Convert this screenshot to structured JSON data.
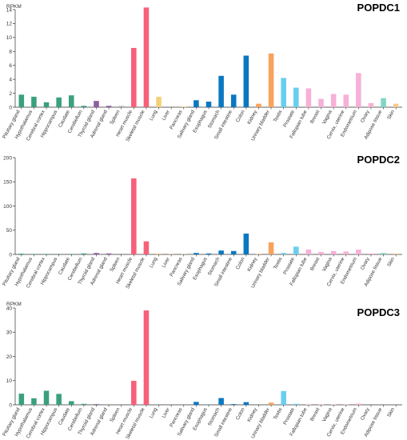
{
  "chart_data": [
    {
      "type": "bar",
      "title": "POPDC1",
      "ylabel": "RPKM",
      "ylim": [
        0,
        14
      ],
      "yticks": [
        0,
        2,
        4,
        6,
        8,
        10,
        12,
        14
      ],
      "grid": false,
      "categories": [
        "Pituitary gland",
        "Hypothalamus",
        "Cerebral cortex",
        "Hippocampus",
        "Caudate",
        "Cerebellum",
        "Thyroid gland",
        "Adrenal gland",
        "Spleen",
        "Heart muscle",
        "Skeletal muscle",
        "Lung",
        "Liver",
        "Pancreas",
        "Salivary gland",
        "Esophagus",
        "Stomach",
        "Small intestine",
        "Colon",
        "Kidney",
        "Urinary bladder",
        "Testis",
        "Prostate",
        "Fallopian tube",
        "Breast",
        "Vagina",
        "Cervix, uterine",
        "Endometrium",
        "Ovary",
        "Adipose tissue",
        "Skin"
      ],
      "values": [
        1.8,
        1.5,
        0.7,
        1.4,
        1.7,
        0.2,
        0.9,
        0.2,
        0.2,
        8.5,
        14.3,
        1.5,
        0,
        0.1,
        1.0,
        0.8,
        4.5,
        1.8,
        7.4,
        0.5,
        7.7,
        4.2,
        2.8,
        2.7,
        1.2,
        1.9,
        1.8,
        4.9,
        0.6,
        1.3,
        0.5
      ]
    },
    {
      "type": "bar",
      "title": "POPDC2",
      "ylabel": "",
      "ylim": [
        0,
        200
      ],
      "yticks": [
        0,
        50,
        100,
        150,
        200
      ],
      "grid": false,
      "categories": [
        "Pituitary gland",
        "Hypothalamus",
        "Cerebral cortex",
        "Hippocampus",
        "Caudate",
        "Cerebellum",
        "Thyroid gland",
        "Adrenal gland",
        "Spleen",
        "Heart muscle",
        "Skeletal muscle",
        "Lung",
        "Liver",
        "Pancreas",
        "Salivary gland",
        "Esophagus",
        "Stomach",
        "Small intestine",
        "Colon",
        "Kidney",
        "Urinary bladder",
        "Testis",
        "Prostate",
        "Fallopian tube",
        "Breast",
        "Vagina",
        "Cervix, uterine",
        "Endometrium",
        "Ovary",
        "Adipose tissue",
        "Skin"
      ],
      "values": [
        1.5,
        1,
        1,
        1,
        1,
        2,
        3,
        2,
        2,
        157,
        27,
        2,
        0.5,
        0.5,
        3,
        2,
        8,
        7,
        43,
        1,
        25,
        3,
        16,
        10,
        5,
        7,
        6,
        10,
        2,
        3,
        2
      ]
    },
    {
      "type": "bar",
      "title": "POPDC3",
      "ylabel": "RPKM",
      "ylim": [
        0,
        40
      ],
      "yticks": [
        0,
        10,
        20,
        30,
        40
      ],
      "grid": false,
      "categories": [
        "Pituitary gland",
        "Hypothalamus",
        "Cerebral cortex",
        "Hippocampus",
        "Caudate",
        "Cerebellum",
        "Thyroid gland",
        "Adrenal gland",
        "Spleen",
        "Heart muscle",
        "Skeletal muscle",
        "Lung",
        "Liver",
        "Pancreas",
        "Salivary gland",
        "Esophagus",
        "Stomach",
        "Small intestine",
        "Colon",
        "Kidney",
        "Urinary bladder",
        "Testis",
        "Prostate",
        "Fallopian tube",
        "Breast",
        "Vagina",
        "Cervix, uterine",
        "Endometrium",
        "Ovary",
        "Adipose tissue",
        "Skin"
      ],
      "values": [
        4.6,
        2.7,
        5.8,
        4.5,
        1.5,
        0.4,
        0.3,
        0,
        0,
        9.9,
        39,
        0,
        0,
        0,
        1.2,
        0.1,
        2.8,
        0.3,
        1.1,
        0,
        0.9,
        5.7,
        0.4,
        0.2,
        0.2,
        0.2,
        0.2,
        0.5,
        0,
        0,
        0
      ]
    }
  ],
  "colors": {
    "brain": "#3aa07f",
    "thyroid": "#8e5ea2",
    "muscle": "#f7607a",
    "lung": "#f5d07a",
    "gi": "#0a78c0",
    "kidney": "#f7a35c",
    "testis": "#69cfee",
    "female": "#f7b0d6",
    "adipose": "#7fd6c3",
    "skin": "#f7c98c",
    "blood": "#b9b9b9",
    "axis": "#333333"
  },
  "category_color_keys": [
    "brain",
    "brain",
    "brain",
    "brain",
    "brain",
    "brain",
    "thyroid",
    "thyroid",
    "blood",
    "muscle",
    "muscle",
    "lung",
    "lung",
    "lung",
    "gi",
    "gi",
    "gi",
    "gi",
    "gi",
    "kidney",
    "kidney",
    "testis",
    "testis",
    "female",
    "female",
    "female",
    "female",
    "female",
    "female",
    "adipose",
    "skin"
  ]
}
